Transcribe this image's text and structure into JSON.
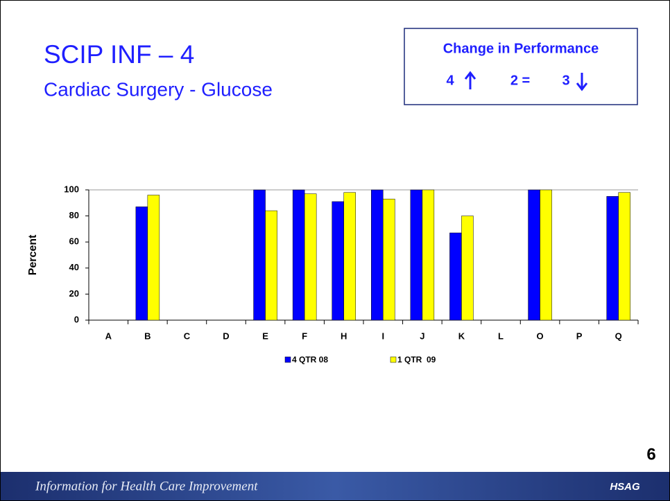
{
  "slide": {
    "title": "SCIP INF – 4",
    "subtitle": "Cardiac Surgery - Glucose",
    "change_box": {
      "title": "Change in Performance",
      "up": "4",
      "equal": "2 =",
      "down": "3"
    },
    "page_number": "6",
    "footer": {
      "tagline": "Information for Health Care Improvement",
      "logo": "HSAG"
    }
  },
  "chart_data": {
    "type": "bar",
    "ylabel": "Percent",
    "categories": [
      "A",
      "B",
      "C",
      "D",
      "E",
      "F",
      "H",
      "I",
      "J",
      "K",
      "L",
      "O",
      "P",
      "Q"
    ],
    "series": [
      {
        "name": "4 QTR 08",
        "color": "#0000ff",
        "values": [
          null,
          87,
          null,
          null,
          100,
          100,
          91,
          100,
          100,
          67,
          null,
          100,
          null,
          95
        ]
      },
      {
        "name": "1 QTR  09",
        "color": "#ffff00",
        "values": [
          null,
          96,
          null,
          null,
          84,
          97,
          98,
          93,
          100,
          80,
          null,
          100,
          null,
          98
        ]
      }
    ],
    "ylim": [
      0,
      100
    ],
    "yticks": [
      0,
      20,
      40,
      60,
      80,
      100
    ],
    "grid": false,
    "legend": "bottom"
  }
}
